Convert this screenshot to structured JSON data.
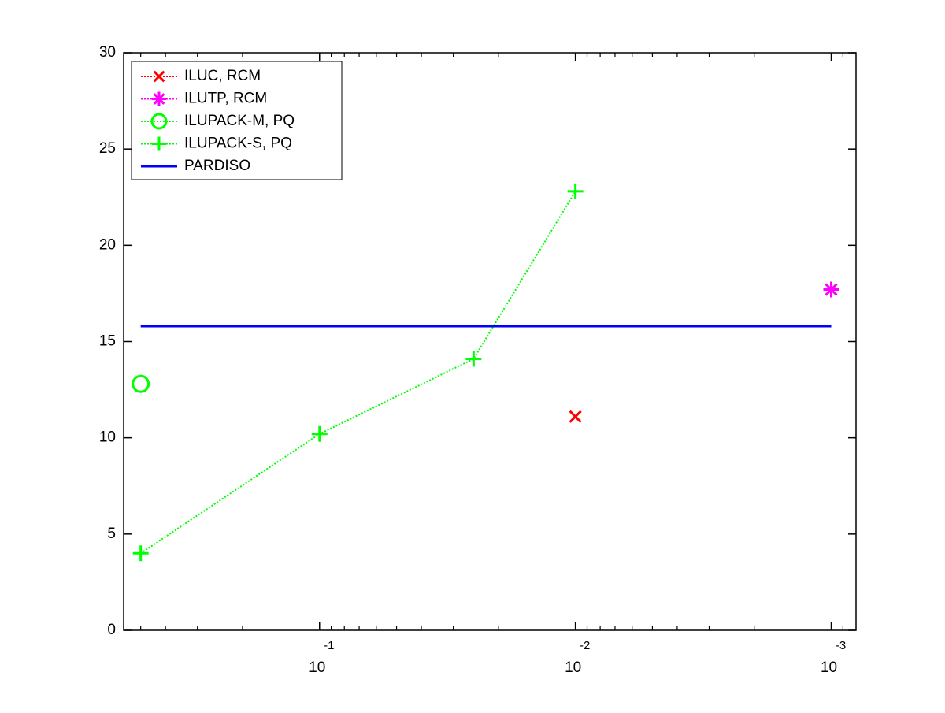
{
  "chart_data": {
    "type": "line",
    "xscale": "log",
    "xlim": [
      0.583,
      0.0008
    ],
    "xticks": [
      {
        "value": 0.1,
        "label": "10",
        "exponent": "-1"
      },
      {
        "value": 0.01,
        "label": "10",
        "exponent": "-2"
      },
      {
        "value": 0.001,
        "label": "10",
        "exponent": "-3"
      }
    ],
    "xminorticks": [
      0.5,
      0.4,
      0.3,
      0.2,
      0.09,
      0.08,
      0.07,
      0.06,
      0.05,
      0.04,
      0.03,
      0.02,
      0.009,
      0.008,
      0.007,
      0.006,
      0.005,
      0.004,
      0.003,
      0.002,
      0.0009
    ],
    "ylim": [
      0,
      30
    ],
    "yticks": [
      0,
      5,
      10,
      15,
      20,
      25,
      30
    ],
    "legend": "upper left",
    "series": [
      {
        "name": "ILUC, RCM",
        "color": "#ff0000",
        "marker": "x",
        "linestyle": "dotted",
        "x": [
          0.01
        ],
        "values": [
          11.1
        ]
      },
      {
        "name": "ILUTP, RCM",
        "color": "#ff00ff",
        "marker": "asterisk",
        "linestyle": "dotted",
        "x": [
          0.001
        ],
        "values": [
          17.7
        ]
      },
      {
        "name": "ILUPACK-M, PQ",
        "color": "#00ff00",
        "marker": "circle",
        "linestyle": "dotted",
        "x": [
          0.5
        ],
        "values": [
          12.8
        ]
      },
      {
        "name": "ILUPACK-S, PQ",
        "color": "#00ff00",
        "marker": "plus",
        "linestyle": "dotted",
        "x": [
          0.5,
          0.1,
          0.025,
          0.01
        ],
        "values": [
          4.0,
          10.2,
          14.1,
          22.8
        ]
      },
      {
        "name": "PARDISO",
        "color": "#0000ff",
        "marker": "none",
        "linestyle": "solid",
        "x": [
          0.5,
          0.001
        ],
        "values": [
          15.8,
          15.8
        ]
      }
    ]
  }
}
